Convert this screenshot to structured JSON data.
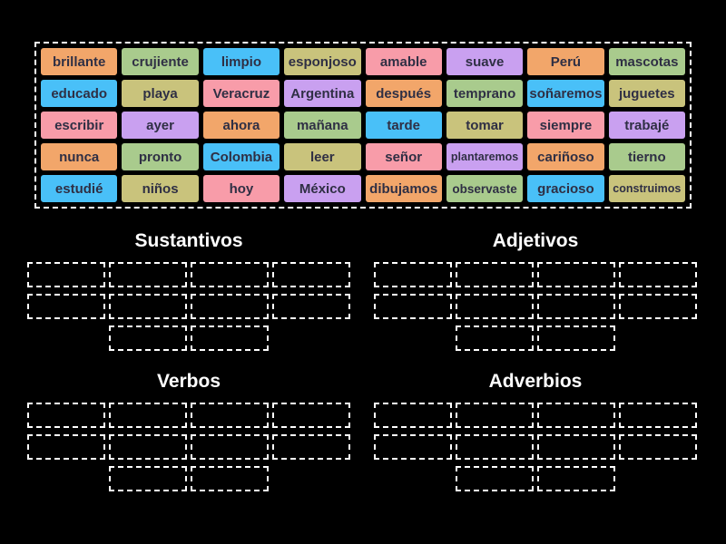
{
  "page": {
    "background": "#000000",
    "tile_text_color": "#2f2f44",
    "title_text_color": "#ffffff",
    "dashed_border_color": "#ffffff"
  },
  "palette": {
    "orange": "#f2a66a",
    "green": "#a9cb8d",
    "blue": "#49c0f8",
    "olive": "#c9c37c",
    "pink": "#f89ca9",
    "purple": "#c9a0f0"
  },
  "pool": {
    "tiles": [
      {
        "label": "brillante",
        "color": "orange"
      },
      {
        "label": "crujiente",
        "color": "green"
      },
      {
        "label": "limpio",
        "color": "blue"
      },
      {
        "label": "esponjoso",
        "color": "olive"
      },
      {
        "label": "amable",
        "color": "pink"
      },
      {
        "label": "suave",
        "color": "purple"
      },
      {
        "label": "Perú",
        "color": "orange"
      },
      {
        "label": "mascotas",
        "color": "green"
      },
      {
        "label": "educado",
        "color": "blue"
      },
      {
        "label": "playa",
        "color": "olive"
      },
      {
        "label": "Veracruz",
        "color": "pink"
      },
      {
        "label": "Argentina",
        "color": "purple"
      },
      {
        "label": "después",
        "color": "orange"
      },
      {
        "label": "temprano",
        "color": "green"
      },
      {
        "label": "soñaremos",
        "color": "blue"
      },
      {
        "label": "juguetes",
        "color": "olive"
      },
      {
        "label": "escribir",
        "color": "pink"
      },
      {
        "label": "ayer",
        "color": "purple"
      },
      {
        "label": "ahora",
        "color": "orange"
      },
      {
        "label": "mañana",
        "color": "green"
      },
      {
        "label": "tarde",
        "color": "blue"
      },
      {
        "label": "tomar",
        "color": "olive"
      },
      {
        "label": "siempre",
        "color": "pink"
      },
      {
        "label": "trabajé",
        "color": "purple"
      },
      {
        "label": "nunca",
        "color": "orange"
      },
      {
        "label": "pronto",
        "color": "green"
      },
      {
        "label": "Colombia",
        "color": "blue"
      },
      {
        "label": "leer",
        "color": "olive"
      },
      {
        "label": "señor",
        "color": "pink"
      },
      {
        "label": "plantaremos",
        "color": "purple"
      },
      {
        "label": "cariñoso",
        "color": "orange"
      },
      {
        "label": "tierno",
        "color": "green"
      },
      {
        "label": "estudié",
        "color": "blue"
      },
      {
        "label": "niños",
        "color": "olive"
      },
      {
        "label": "hoy",
        "color": "pink"
      },
      {
        "label": "México",
        "color": "purple"
      },
      {
        "label": "dibujamos",
        "color": "orange"
      },
      {
        "label": "observaste",
        "color": "green"
      },
      {
        "label": "gracioso",
        "color": "blue"
      },
      {
        "label": "construimos",
        "color": "olive"
      }
    ]
  },
  "groups": [
    {
      "title": "Sustantivos",
      "slot_rows": [
        4,
        4,
        2
      ]
    },
    {
      "title": "Adjetivos",
      "slot_rows": [
        4,
        4,
        2
      ]
    },
    {
      "title": "Verbos",
      "slot_rows": [
        4,
        4,
        2
      ]
    },
    {
      "title": "Adverbios",
      "slot_rows": [
        4,
        4,
        2
      ]
    }
  ]
}
